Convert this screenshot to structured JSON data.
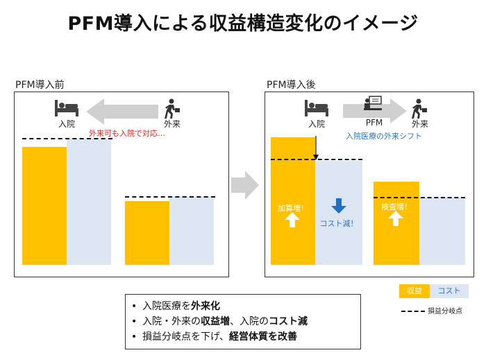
{
  "title": "PFM導入による収益構造変化のイメージ",
  "before": {
    "label": "PFM導入前",
    "inpatient": "入院",
    "outpatient": "外来",
    "note": "外来可も入院で対応…"
  },
  "after": {
    "label": "PFM導入後",
    "inpatient": "入院",
    "pfm": "PFM",
    "outpatient": "外来",
    "note": "入院医療の外来シフト",
    "bar1_text": "加算増！",
    "bar2_text": "コスト減！",
    "bar3_text": "検査増！"
  },
  "legend": {
    "revenue": "収益",
    "cost": "コスト",
    "breakeven": "損益分岐点"
  },
  "bullets": [
    {
      "pre": "入院医療を",
      "bold": "外来化",
      "mid": "",
      "bold2": "",
      "post": ""
    },
    {
      "pre": "入院・外来の",
      "bold": "収益増",
      "mid": "、入院の",
      "bold2": "コスト減",
      "post": ""
    },
    {
      "pre": "損益分岐点を下げ、",
      "bold": "経営体質を改善",
      "mid": "",
      "bold2": "",
      "post": ""
    }
  ],
  "colors": {
    "revenue": "#FFC000",
    "cost": "#DCE6F2",
    "arrow_gray": "#D0D0D0",
    "note_red": "#E0201B",
    "note_blue": "#2E75B6"
  },
  "icons": [
    "bed-icon",
    "walking-person-icon",
    "doctor-desk-icon",
    "arrow-up-icon",
    "arrow-down-icon"
  ]
}
